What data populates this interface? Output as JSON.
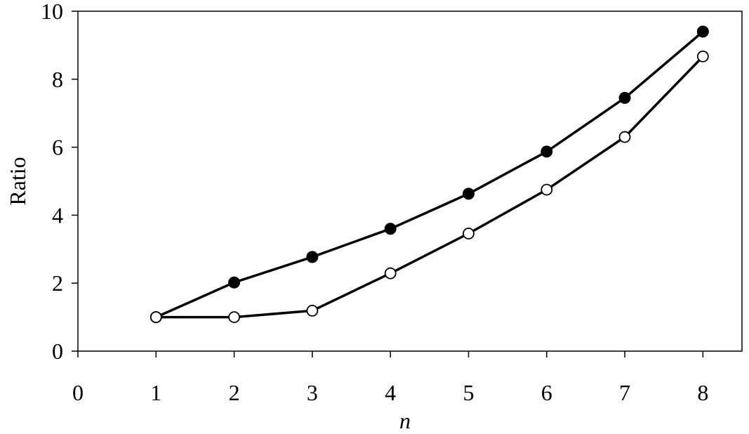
{
  "chart_data": {
    "type": "line",
    "title": "",
    "xlabel": "n",
    "ylabel": "Ratio",
    "xlim": [
      0,
      8.5
    ],
    "ylim": [
      0,
      10
    ],
    "x_ticks": [
      0,
      1,
      2,
      3,
      4,
      5,
      6,
      7,
      8
    ],
    "y_ticks": [
      0,
      2,
      4,
      6,
      8,
      10
    ],
    "grid": false,
    "legend": "none",
    "series": [
      {
        "marker": "filled-circle",
        "color": "#000000",
        "x": [
          1,
          2,
          3,
          4,
          5,
          6,
          7,
          8
        ],
        "y": [
          1.0,
          2.02,
          2.77,
          3.6,
          4.63,
          5.87,
          7.45,
          9.4
        ]
      },
      {
        "marker": "open-circle",
        "color": "#000000",
        "x": [
          1,
          2,
          3,
          4,
          5,
          6,
          7,
          8
        ],
        "y": [
          1.0,
          1.0,
          1.19,
          2.29,
          3.46,
          4.75,
          6.3,
          8.67
        ]
      }
    ]
  }
}
